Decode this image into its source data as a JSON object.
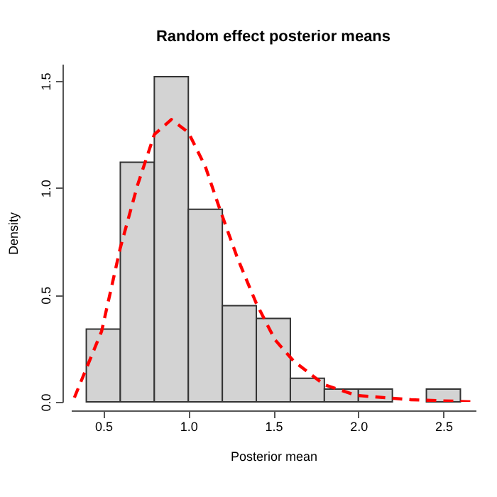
{
  "chart_data": {
    "type": "histogram",
    "title": "Random effect posterior means",
    "xlabel": "Posterior mean",
    "ylabel": "Density",
    "bins": [
      0.4,
      0.6,
      0.8,
      1.0,
      1.2,
      1.4,
      1.6,
      1.8,
      2.0,
      2.2,
      2.4,
      2.6
    ],
    "values": [
      0.34,
      1.12,
      1.52,
      0.9,
      0.45,
      0.39,
      0.11,
      0.06,
      0.06,
      0,
      0.06
    ],
    "color": "#d3d3d3",
    "series": [
      {
        "type": "line",
        "line_style": "dashed",
        "color": "#ff0000",
        "x": [
          0.33,
          0.49,
          0.6,
          0.7,
          0.8,
          0.9,
          1.0,
          1.1,
          1.19,
          1.29,
          1.4,
          1.51,
          1.62,
          1.8,
          1.99,
          2.31,
          2.67
        ],
        "values": [
          0.02,
          0.33,
          0.72,
          1.01,
          1.25,
          1.32,
          1.26,
          1.1,
          0.89,
          0.67,
          0.46,
          0.29,
          0.19,
          0.08,
          0.03,
          0.01,
          0.0
        ]
      }
    ],
    "xlim": [
      0.31,
      2.69
    ],
    "ylim": [
      0,
      1.58
    ],
    "xticks": [
      0.5,
      {
        "value": 1,
        "label": "1.0"
      },
      1.5,
      {
        "value": 2,
        "label": "2.0"
      },
      2.5
    ],
    "yticks": [
      {
        "value": 0,
        "label": "0.0"
      },
      0.5,
      {
        "value": 1,
        "label": "1.0"
      },
      1.5
    ]
  }
}
